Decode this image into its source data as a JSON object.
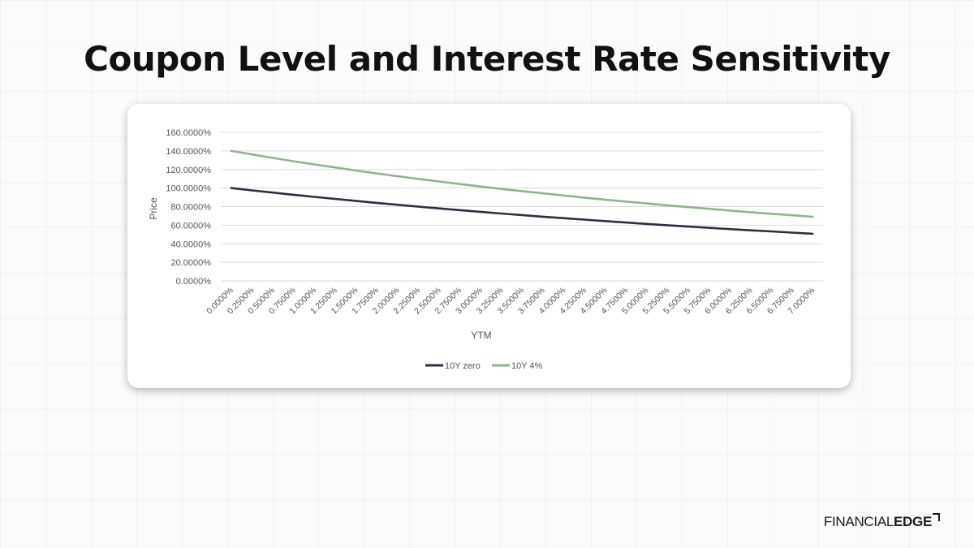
{
  "slide": {
    "title": "Coupon Level and Interest Rate Sensitivity"
  },
  "brand": {
    "part1": "FINANCIAL",
    "part2": "EDGE",
    "mark_icon": "corner-bracket-icon"
  },
  "chart_data": {
    "type": "line",
    "title": "",
    "xlabel": "YTM",
    "ylabel": "Price",
    "ylim": [
      0,
      160
    ],
    "y_ticks": [
      "160.0000%",
      "140.0000%",
      "120.0000%",
      "100.0000%",
      "80.0000%",
      "60.0000%",
      "40.0000%",
      "20.0000%",
      "0.0000%"
    ],
    "y_tick_values": [
      160,
      140,
      120,
      100,
      80,
      60,
      40,
      20,
      0
    ],
    "grid": true,
    "legend_position": "bottom",
    "categories": [
      "0.0000%",
      "0.2500%",
      "0.5000%",
      "0.7500%",
      "1.0000%",
      "1.2500%",
      "1.5000%",
      "1.7500%",
      "2.0000%",
      "2.2500%",
      "2.5000%",
      "2.7500%",
      "3.0000%",
      "3.2500%",
      "3.5000%",
      "3.7500%",
      "4.0000%",
      "4.2500%",
      "4.5000%",
      "4.7500%",
      "5.0000%",
      "5.2500%",
      "5.5000%",
      "5.7500%",
      "6.0000%",
      "6.2500%",
      "6.5000%",
      "6.7500%",
      "7.0000%"
    ],
    "series": [
      {
        "name": "10Y zero",
        "color": "#2f2d42",
        "values": [
          100.0,
          97.5,
          95.1,
          92.8,
          90.5,
          88.3,
          86.2,
          84.0,
          82.0,
          80.0,
          78.1,
          76.2,
          74.4,
          72.6,
          70.9,
          69.2,
          67.6,
          66.0,
          64.4,
          62.9,
          61.4,
          60.0,
          58.5,
          57.2,
          55.8,
          54.5,
          53.3,
          52.0,
          50.8
        ]
      },
      {
        "name": "10Y 4%",
        "color": "#8fb48f",
        "values": [
          140.0,
          136.2,
          132.5,
          128.9,
          125.5,
          122.2,
          118.9,
          115.8,
          112.8,
          109.9,
          107.1,
          104.3,
          101.7,
          99.1,
          96.7,
          94.3,
          92.0,
          89.7,
          87.5,
          85.4,
          83.4,
          81.4,
          79.5,
          77.6,
          75.8,
          74.0,
          72.3,
          70.7,
          69.1
        ]
      }
    ]
  }
}
